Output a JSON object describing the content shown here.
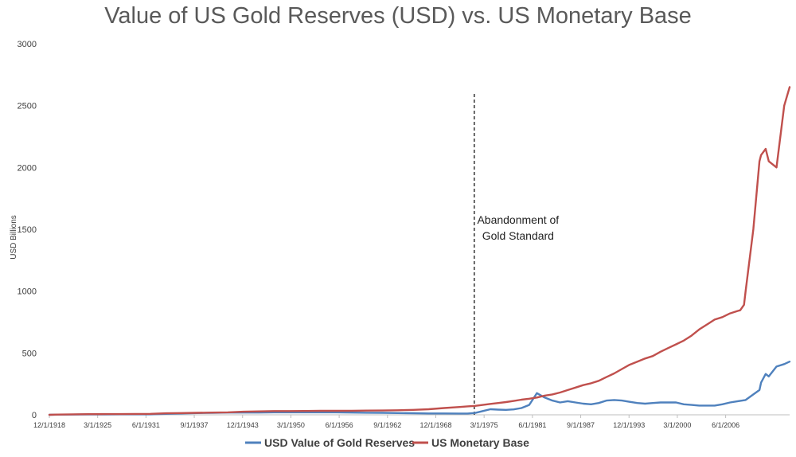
{
  "chart_data": {
    "type": "line",
    "title": "Value of US Gold Reserves (USD) vs. US Monetary Base",
    "ylabel": "USD Billions",
    "xlabel": "",
    "ylim": [
      0,
      3000
    ],
    "yticks": [
      0,
      500,
      1000,
      1500,
      2000,
      2500,
      3000
    ],
    "xlim": [
      1918.92,
      2014.7
    ],
    "xticks": [
      {
        "t": 1918.92,
        "label": "12/1/1918"
      },
      {
        "t": 1925.17,
        "label": "3/1/1925"
      },
      {
        "t": 1931.42,
        "label": "6/1/1931"
      },
      {
        "t": 1937.67,
        "label": "9/1/1937"
      },
      {
        "t": 1943.92,
        "label": "12/1/1943"
      },
      {
        "t": 1950.17,
        "label": "3/1/1950"
      },
      {
        "t": 1956.42,
        "label": "6/1/1956"
      },
      {
        "t": 1962.67,
        "label": "9/1/1962"
      },
      {
        "t": 1968.92,
        "label": "12/1/1968"
      },
      {
        "t": 1975.17,
        "label": "3/1/1975"
      },
      {
        "t": 1981.42,
        "label": "6/1/1981"
      },
      {
        "t": 1987.67,
        "label": "9/1/1987"
      },
      {
        "t": 1993.92,
        "label": "12/1/1993"
      },
      {
        "t": 2000.17,
        "label": "3/1/2000"
      },
      {
        "t": 2006.42,
        "label": "6/1/2006"
      }
    ],
    "grid": false,
    "legend_position": "bottom",
    "annotations": [
      {
        "x": 1973.9,
        "text_lines": [
          "Abandonment of",
          "Gold Standard"
        ],
        "style": "dashed-vertical-line"
      }
    ],
    "series": [
      {
        "name": "USD Value of Gold Reserves",
        "color": "#4f81bd",
        "x": [
          1918.92,
          1920,
          1922,
          1924,
          1926,
          1928,
          1930,
          1932,
          1934,
          1936,
          1938,
          1940,
          1942,
          1944,
          1946,
          1948,
          1950,
          1952,
          1954,
          1956,
          1958,
          1960,
          1962,
          1964,
          1966,
          1968,
          1970,
          1972,
          1973,
          1974,
          1975,
          1976,
          1977,
          1978,
          1979,
          1980,
          1981,
          1982,
          1983,
          1984,
          1985,
          1986,
          1987,
          1988,
          1989,
          1990,
          1991,
          1992,
          1993,
          1994,
          1995,
          1996,
          1997,
          1998,
          1999,
          2000,
          2001,
          2002,
          2003,
          2004,
          2005,
          2006,
          2007,
          2008,
          2009,
          2010,
          2010.8,
          2011,
          2011.6,
          2012,
          2013,
          2014,
          2014.7
        ],
        "values": [
          0,
          1,
          2,
          3,
          3,
          4,
          4,
          4,
          8,
          11,
          14,
          16,
          18,
          18,
          18,
          20,
          20,
          20,
          20,
          20,
          18,
          17,
          16,
          14,
          13,
          11,
          11,
          10,
          10,
          15,
          30,
          45,
          42,
          40,
          44,
          55,
          80,
          175,
          140,
          115,
          100,
          110,
          100,
          90,
          85,
          95,
          115,
          120,
          115,
          105,
          95,
          90,
          95,
          100,
          100,
          100,
          85,
          80,
          75,
          75,
          75,
          85,
          100,
          110,
          120,
          165,
          200,
          260,
          330,
          310,
          390,
          410,
          430
        ]
      },
      {
        "name": "US Monetary Base",
        "color": "#c0504d",
        "x": [
          1918.92,
          1920,
          1922,
          1924,
          1926,
          1928,
          1930,
          1932,
          1934,
          1936,
          1938,
          1940,
          1942,
          1944,
          1946,
          1948,
          1950,
          1952,
          1954,
          1956,
          1958,
          1960,
          1962,
          1964,
          1966,
          1968,
          1970,
          1972,
          1973,
          1974,
          1975,
          1976,
          1977,
          1978,
          1979,
          1980,
          1981,
          1982,
          1983,
          1984,
          1985,
          1986,
          1987,
          1988,
          1989,
          1990,
          1991,
          1992,
          1993,
          1994,
          1995,
          1996,
          1997,
          1998,
          1999,
          2000,
          2001,
          2002,
          2003,
          2004,
          2005,
          2006,
          2007,
          2008,
          2008.3,
          2008.8,
          2009,
          2010,
          2010.8,
          2011,
          2011.6,
          2012,
          2013,
          2014,
          2014.7
        ],
        "values": [
          0,
          2,
          4,
          5,
          6,
          6,
          7,
          8,
          12,
          14,
          16,
          18,
          20,
          25,
          28,
          30,
          30,
          31,
          32,
          32,
          33,
          34,
          35,
          37,
          40,
          45,
          55,
          63,
          68,
          72,
          80,
          88,
          95,
          103,
          112,
          122,
          130,
          140,
          155,
          165,
          180,
          200,
          220,
          240,
          255,
          275,
          305,
          335,
          370,
          405,
          430,
          455,
          475,
          510,
          540,
          570,
          600,
          640,
          690,
          730,
          770,
          790,
          820,
          840,
          845,
          890,
          1000,
          1500,
          2050,
          2100,
          2150,
          2050,
          2000,
          2500,
          2650
        ]
      }
    ]
  }
}
